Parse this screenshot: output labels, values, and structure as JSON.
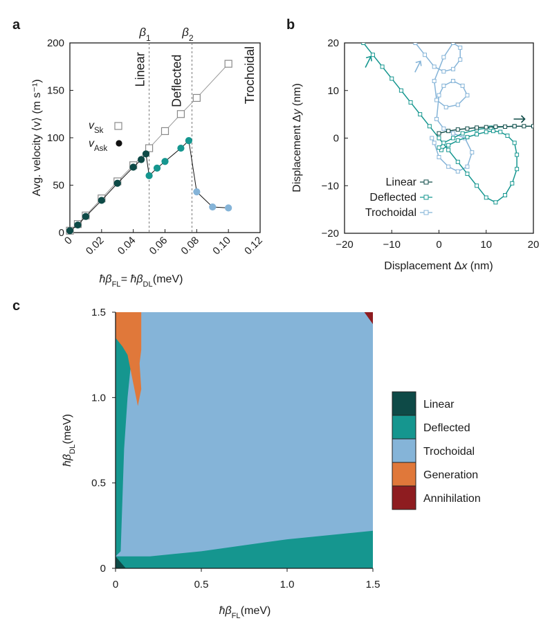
{
  "colors": {
    "linear": "#0e4a47",
    "deflected": "#15968f",
    "trochoidal": "#85b4d8",
    "generation": "#e0783a",
    "annihilation": "#8e1c20",
    "sk": "#888888",
    "ask": "#111111",
    "axis": "#1a1a1a"
  },
  "chart_data": [
    {
      "panel": "a",
      "type": "line",
      "xlabel": "ħβ_FL = ħβ_DL (meV)",
      "ylabel": "Avg. velocity ⟨v⟩ (m s⁻¹)",
      "xlim": [
        0,
        0.12
      ],
      "ylim": [
        0,
        200
      ],
      "xticks": [
        0,
        0.02,
        0.04,
        0.06,
        0.08,
        0.1,
        0.12
      ],
      "xtick_labels": [
        "0",
        "0.02",
        "0.04",
        "0.06",
        "0.08",
        "0.10",
        "0.12"
      ],
      "yticks": [
        0,
        50,
        100,
        150,
        200
      ],
      "ytick_labels": [
        "0",
        "50",
        "100",
        "150",
        "200"
      ],
      "vlines": [
        {
          "x": 0.05,
          "label": "β",
          "sub": "1"
        },
        {
          "x": 0.077,
          "label": "β",
          "sub": "2"
        }
      ],
      "region_labels": [
        {
          "text": "Linear",
          "x": 0.047,
          "y": 172,
          "regime": "linear"
        },
        {
          "text": "Deflected",
          "x": 0.07,
          "y": 160,
          "regime": "deflected"
        },
        {
          "text": "Trochoidal",
          "x": 0.116,
          "y": 166,
          "regime": "trochoidal"
        }
      ],
      "legend": [
        {
          "name": "v",
          "sub": "Sk",
          "marker": "open-square",
          "color": "sk"
        },
        {
          "name": "v",
          "sub": "Ask",
          "marker": "filled-circle",
          "color": "ask"
        }
      ],
      "series": [
        {
          "name": "v_Sk",
          "marker": "open-square",
          "x": [
            0,
            0.005,
            0.01,
            0.02,
            0.03,
            0.04,
            0.05,
            0.06,
            0.07,
            0.08,
            0.1
          ],
          "y": [
            2,
            9,
            18,
            36,
            54,
            71,
            89,
            107,
            125,
            142,
            178
          ]
        },
        {
          "name": "v_Ask",
          "marker": "filled-circle",
          "x": [
            0,
            0.005,
            0.01,
            0.02,
            0.03,
            0.04,
            0.045,
            0.048,
            0.05,
            0.055,
            0.06,
            0.07,
            0.075,
            0.08,
            0.09,
            0.1
          ],
          "y": [
            2,
            8,
            17,
            34,
            52,
            69,
            77,
            83,
            60,
            68,
            75,
            89,
            97,
            43,
            27,
            26
          ],
          "regimes": [
            "linear",
            "linear",
            "linear",
            "linear",
            "linear",
            "linear",
            "linear",
            "linear",
            "deflected",
            "deflected",
            "deflected",
            "deflected",
            "deflected",
            "trochoidal",
            "trochoidal",
            "trochoidal"
          ]
        }
      ]
    },
    {
      "panel": "b",
      "type": "line",
      "xlabel": "Displacement Δx (nm)",
      "ylabel": "Displacement Δy (nm)",
      "xlim": [
        -20,
        20
      ],
      "ylim": [
        -20,
        20
      ],
      "xticks": [
        -20,
        -10,
        0,
        10,
        20
      ],
      "xtick_labels": [
        "−20",
        "−10",
        "0",
        "10",
        "20"
      ],
      "yticks": [
        -20,
        -10,
        0,
        10,
        20
      ],
      "ytick_labels": [
        "−20",
        "−10",
        "0",
        "10",
        "20"
      ],
      "legend": [
        {
          "name": "Linear",
          "regime": "linear"
        },
        {
          "name": "Deflected",
          "regime": "deflected"
        },
        {
          "name": "Trochoidal",
          "regime": "trochoidal"
        }
      ],
      "series": [
        {
          "name": "Linear",
          "x": [
            0,
            2,
            4,
            6,
            8,
            10,
            12,
            14,
            16,
            18,
            20
          ],
          "y": [
            1,
            1.5,
            1.8,
            2.0,
            2.2,
            2.3,
            2.4,
            2.4,
            2.5,
            2.5,
            2.5
          ]
        },
        {
          "name": "Deflected",
          "x": [
            -16,
            -14,
            -12,
            -10,
            -8,
            -6,
            -4,
            -2,
            0,
            2,
            4,
            6,
            8,
            10,
            12,
            14,
            15.5,
            16.5,
            16.5,
            16,
            14.5,
            13,
            11.5,
            10,
            8,
            6,
            4,
            2,
            0.5,
            0,
            1,
            3,
            5,
            8,
            11,
            14,
            16
          ],
          "y": [
            20,
            17.5,
            15,
            12.5,
            10,
            7.5,
            5,
            2.5,
            0,
            -2.5,
            -5,
            -7.5,
            -10,
            -12.5,
            -13.5,
            -12,
            -9.5,
            -6.5,
            -3.5,
            -1,
            0.5,
            1.3,
            1.5,
            1.3,
            0.8,
            0.2,
            -0.5,
            -1.5,
            -2.5,
            -2,
            -1,
            0,
            1,
            1.8,
            2.2,
            2.4,
            2.5
          ]
        },
        {
          "name": "Trochoidal",
          "x": [
            -5,
            -3,
            -1,
            1,
            3,
            4.5,
            4.5,
            3,
            1,
            -1,
            -0.5,
            1.5,
            4,
            6,
            5,
            3,
            1,
            0,
            -0.5,
            1,
            3,
            5.5,
            7,
            6,
            4,
            2,
            0,
            -1,
            -1.5
          ],
          "y": [
            20,
            17.5,
            15,
            14,
            14.5,
            16.5,
            19,
            20,
            17,
            12,
            8,
            6.5,
            7,
            9,
            11,
            12,
            11,
            9,
            4,
            2,
            1,
            0,
            -3,
            -6,
            -7,
            -6,
            -4,
            -1,
            0
          ]
        }
      ],
      "arrows": [
        {
          "regime": "deflected",
          "x": -15,
          "y": 16
        },
        {
          "regime": "trochoidal",
          "x": -4.5,
          "y": 15
        },
        {
          "regime": "linear",
          "x": 17,
          "y": 4
        }
      ]
    },
    {
      "panel": "c",
      "type": "heatmap",
      "xlabel": "ħβ_FL (meV)",
      "ylabel": "ħβ_DL (meV)",
      "xlim": [
        0,
        1.5
      ],
      "ylim": [
        0,
        1.5
      ],
      "xticks": [
        0,
        0.5,
        1.0,
        1.5
      ],
      "xtick_labels": [
        "0",
        "0.5",
        "1.0",
        "1.5"
      ],
      "yticks": [
        0,
        0.5,
        1.0,
        1.5
      ],
      "ytick_labels": [
        "0",
        "0.5",
        "1.0",
        "1.5"
      ],
      "categories": [
        "Linear",
        "Deflected",
        "Trochoidal",
        "Generation",
        "Annihilation"
      ],
      "regimes": [
        "linear",
        "deflected",
        "trochoidal",
        "generation",
        "annihilation"
      ],
      "regions": [
        {
          "regime": "trochoidal",
          "note": "background, most of the map"
        },
        {
          "regime": "deflected",
          "boundary_x": [
            0,
            0.2,
            0.5,
            1.0,
            1.5
          ],
          "boundary_y": [
            0.07,
            0.07,
            0.1,
            0.17,
            0.22
          ]
        },
        {
          "regime": "deflected",
          "strip_left_of": [
            0.03,
            0.04,
            0.05,
            0.07,
            0.1
          ],
          "strip_y": [
            0.1,
            0.4,
            0.7,
            1.0,
            1.3
          ]
        },
        {
          "regime": "generation",
          "x_range": [
            0,
            0.15
          ],
          "y_range": [
            0.95,
            1.5
          ]
        },
        {
          "regime": "annihilation",
          "x_range": [
            1.45,
            1.5
          ],
          "y_range": [
            1.43,
            1.5
          ]
        },
        {
          "regime": "linear",
          "x_range": [
            0,
            0.06
          ],
          "y_range": [
            0,
            0.07
          ]
        }
      ]
    }
  ]
}
